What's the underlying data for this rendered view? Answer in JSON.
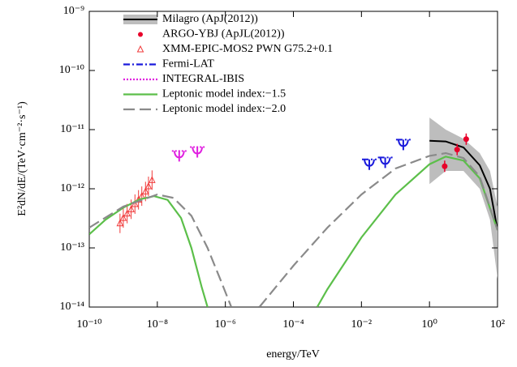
{
  "chart_data": {
    "type": "line",
    "xlabel": "energy/TeV",
    "ylabel": "E²dN/dE/(TeV·cm⁻²·s⁻¹)",
    "log_x": true,
    "log_y": true,
    "xlim": [
      1e-10,
      100
    ],
    "ylim": [
      1e-14,
      1e-09
    ],
    "xticks": [
      {
        "value": 1e-10,
        "label": "10⁻¹⁰"
      },
      {
        "value": 1e-08,
        "label": "10⁻⁸"
      },
      {
        "value": 1e-06,
        "label": "10⁻⁶"
      },
      {
        "value": 0.0001,
        "label": "10⁻⁴"
      },
      {
        "value": 0.01,
        "label": "10⁻²"
      },
      {
        "value": 1,
        "label": "10⁰"
      },
      {
        "value": 100,
        "label": "10²"
      }
    ],
    "yticks": [
      {
        "value": 1e-14,
        "label": "10⁻¹⁴"
      },
      {
        "value": 1e-13,
        "label": "10⁻¹³"
      },
      {
        "value": 1e-12,
        "label": "10⁻¹²"
      },
      {
        "value": 1e-11,
        "label": "10⁻¹¹"
      },
      {
        "value": 1e-10,
        "label": "10⁻¹⁰"
      },
      {
        "value": 1e-09,
        "label": "10⁻⁹"
      }
    ],
    "legend": "upper left",
    "series": [
      {
        "name": "Milagro (ApJ(2012))",
        "mark": "band",
        "color": "#000000",
        "band_color": "#bdbdbd",
        "x": [
          1,
          3,
          10,
          30,
          60,
          100
        ],
        "values": [
          6.5e-12,
          6.3e-12,
          5e-12,
          2.5e-12,
          1e-12,
          2e-13
        ],
        "lower": [
          1.2e-12,
          2e-12,
          2e-12,
          1e-12,
          3e-13,
          3e-14
        ],
        "upper": [
          1.6e-11,
          1e-11,
          7e-12,
          4e-12,
          2e-12,
          5e-13
        ]
      },
      {
        "name": "ARGO-YBJ (ApJL(2012))",
        "mark": "dot",
        "color": "#e8002a",
        "x": [
          2.8,
          6.5,
          12
        ],
        "values": [
          2.4e-12,
          4.6e-12,
          6.9e-12
        ]
      },
      {
        "name": "XMM-EPIC-MOS2 PWN G75.2+0.1",
        "mark": "triangle",
        "color": "#f03a3a",
        "x": [
          8e-10,
          1e-09,
          1.3e-09,
          1.7e-09,
          2.2e-09,
          2.8e-09,
          3.5e-09,
          4.5e-09,
          5.5e-09,
          7e-09
        ],
        "values": [
          2.6e-13,
          3.2e-13,
          3.8e-13,
          4.5e-13,
          5.5e-13,
          6.5e-13,
          7.5e-13,
          9e-13,
          1.1e-12,
          1.4e-12
        ]
      },
      {
        "name": "Fermi-LAT",
        "mark": "dashdot",
        "color": "#1a1adc",
        "x": [
          0.017,
          0.05,
          0.17
        ],
        "values": [
          2.6e-12,
          2.8e-12,
          5.6e-12
        ]
      },
      {
        "name": "INTEGRAL-IBIS",
        "mark": "dotted",
        "color": "#e020e0",
        "x": [
          4.4e-08,
          1.5e-07
        ],
        "values": [
          3.6e-12,
          4.2e-12
        ]
      },
      {
        "name": "Leptonic model index:−1.5",
        "mark": "line",
        "color": "#5cbf4a",
        "x": [
          1e-10,
          3e-10,
          1e-09,
          3e-09,
          8e-09,
          2e-08,
          5e-08,
          1e-07,
          2e-07,
          3e-07,
          null,
          0.0005,
          0.001,
          0.01,
          0.1,
          1,
          3,
          10,
          30,
          100
        ],
        "values": [
          1.7e-13,
          3e-13,
          4.8e-13,
          6.6e-13,
          7.5e-13,
          6.5e-13,
          3.2e-13,
          1e-13,
          2.2e-14,
          1e-14,
          null,
          1e-14,
          2e-14,
          1.5e-13,
          8e-13,
          2.6e-12,
          3.5e-12,
          3e-12,
          1.5e-12,
          2e-13
        ]
      },
      {
        "name": "Leptonic model index:−2.0",
        "mark": "dashed",
        "color": "#8a8a8a",
        "x": [
          1e-10,
          1e-09,
          1e-08,
          3e-08,
          1e-07,
          3e-07,
          7e-07,
          1.5e-06,
          null,
          1e-05,
          0.0001,
          0.001,
          0.01,
          0.1,
          1,
          3,
          10,
          30,
          100
        ],
        "values": [
          2.2e-13,
          5e-13,
          8e-13,
          7e-13,
          3.5e-13,
          1e-13,
          3e-14,
          1e-14,
          null,
          1e-14,
          5e-14,
          2.2e-13,
          8e-13,
          2.2e-12,
          3.6e-12,
          4e-12,
          3.3e-12,
          1.6e-12,
          2e-13
        ]
      }
    ]
  }
}
